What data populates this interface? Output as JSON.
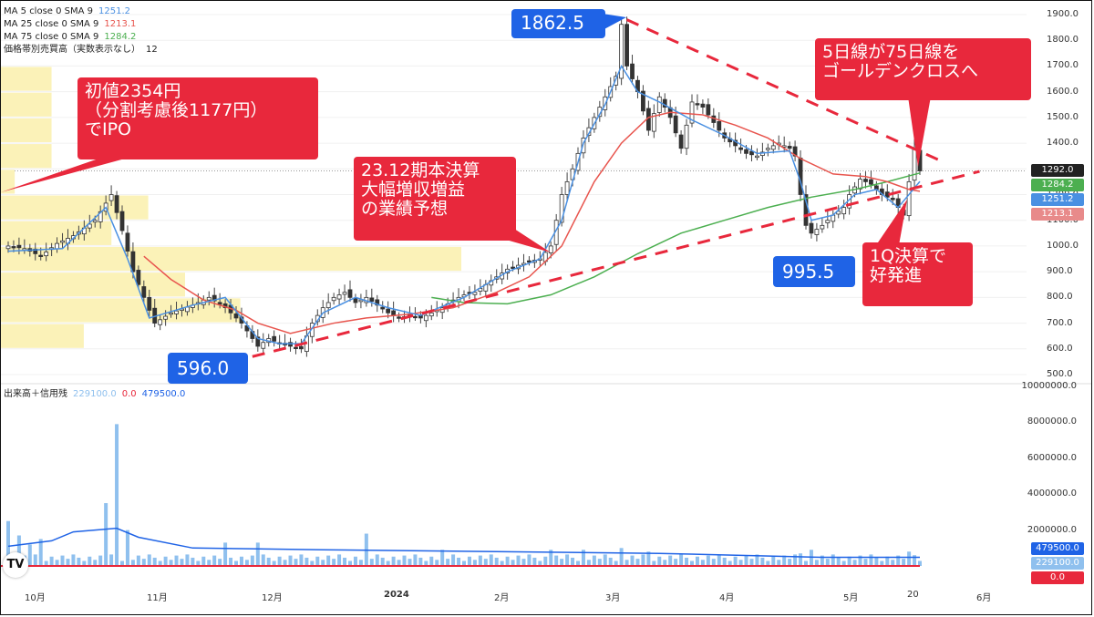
{
  "legends": {
    "ma5": {
      "label": "MA 5 close 0 SMA 9",
      "value": "1251.2",
      "color": "#4a90e2"
    },
    "ma25": {
      "label": "MA 25 close 0 SMA 9",
      "value": "1213.1",
      "color": "#e8554e"
    },
    "ma75": {
      "label": "MA 75 close 0 SMA 9",
      "value": "1284.2",
      "color": "#4caf50"
    },
    "vp": {
      "label": "価格帯別売買高（実数表示なし）",
      "value": "12"
    },
    "vol": {
      "label": "出来高＋信用残",
      "v1": "229100.0",
      "v2": "0.0",
      "v3": "479500.0"
    }
  },
  "callouts": {
    "ipo": "初値2354円\n（分割考慮後1177円）\nでIPO",
    "results": "23.12期本決算\n大幅増収増益\nの業績予想",
    "golden": "5日線が75日線を\nゴールデンクロスへ",
    "q1": "1Q決算で\n好発進",
    "high": "1862.5",
    "low1": "596.0",
    "low2": "995.5"
  },
  "price_tags": [
    {
      "text": "1292.0",
      "color": "#222222"
    },
    {
      "text": "1284.2",
      "color": "#4caf50"
    },
    {
      "text": "1251.2",
      "color": "#4a90e2"
    },
    {
      "text": "1213.1",
      "color": "#e88a8a"
    }
  ],
  "volume_tags": [
    {
      "text": "479500.0",
      "color": "#1f63e6"
    },
    {
      "text": "229100.0",
      "color": "#8fc0ee"
    },
    {
      "text": "0.0",
      "color": "#e8283c"
    }
  ],
  "logo": "TV",
  "chart_data": {
    "type": "candlestick",
    "price_axis": {
      "ticks": [
        500,
        600,
        700,
        800,
        900,
        1000,
        1100,
        1200,
        1300,
        1400,
        1500,
        1600,
        1700,
        1800,
        1900
      ],
      "range": [
        460,
        1940
      ]
    },
    "volume_axis": {
      "ticks": [
        2000000,
        4000000,
        6000000,
        8000000,
        10000000
      ],
      "tick_labels": [
        "2000000.0",
        "4000000.0",
        "6000000.0",
        "8000000.0",
        "10000000.0"
      ],
      "range": [
        0,
        10000000
      ]
    },
    "x_axis_labels": [
      "10月",
      "11月",
      "12月",
      "2024",
      "2月",
      "3月",
      "4月",
      "5月",
      "20",
      "6月"
    ],
    "last_price": 1292.0,
    "annotations": {
      "high": 1862.5,
      "low1": 596.0,
      "low2": 995.5
    },
    "price_path": [
      [
        0,
        1000
      ],
      [
        3,
        990
      ],
      [
        6,
        960
      ],
      [
        9,
        1010
      ],
      [
        12,
        1040
      ],
      [
        16,
        1100
      ],
      [
        19,
        1200
      ],
      [
        21,
        1060
      ],
      [
        23,
        900
      ],
      [
        25,
        800
      ],
      [
        27,
        700
      ],
      [
        30,
        740
      ],
      [
        34,
        770
      ],
      [
        37,
        800
      ],
      [
        40,
        760
      ],
      [
        43,
        700
      ],
      [
        46,
        610
      ],
      [
        48,
        640
      ],
      [
        50,
        620
      ],
      [
        52,
        610
      ],
      [
        54,
        600
      ],
      [
        56,
        700
      ],
      [
        58,
        760
      ],
      [
        60,
        800
      ],
      [
        62,
        820
      ],
      [
        64,
        780
      ],
      [
        66,
        800
      ],
      [
        68,
        770
      ],
      [
        70,
        740
      ],
      [
        72,
        720
      ],
      [
        74,
        730
      ],
      [
        76,
        720
      ],
      [
        78,
        740
      ],
      [
        80,
        760
      ],
      [
        82,
        790
      ],
      [
        84,
        810
      ],
      [
        86,
        820
      ],
      [
        88,
        850
      ],
      [
        90,
        880
      ],
      [
        92,
        910
      ],
      [
        94,
        925
      ],
      [
        96,
        940
      ],
      [
        98,
        950
      ],
      [
        100,
        1000
      ],
      [
        101,
        1100
      ],
      [
        102,
        1200
      ],
      [
        104,
        1300
      ],
      [
        106,
        1420
      ],
      [
        108,
        1500
      ],
      [
        110,
        1580
      ],
      [
        112,
        1660
      ],
      [
        113,
        1862
      ],
      [
        114,
        1700
      ],
      [
        116,
        1600
      ],
      [
        118,
        1450
      ],
      [
        120,
        1580
      ],
      [
        122,
        1500
      ],
      [
        124,
        1380
      ],
      [
        126,
        1560
      ],
      [
        128,
        1540
      ],
      [
        130,
        1480
      ],
      [
        132,
        1420
      ],
      [
        134,
        1390
      ],
      [
        136,
        1360
      ],
      [
        138,
        1350
      ],
      [
        140,
        1380
      ],
      [
        142,
        1400
      ],
      [
        144,
        1380
      ],
      [
        145,
        1350
      ],
      [
        146,
        1200
      ],
      [
        147,
        1080
      ],
      [
        148,
        1050
      ],
      [
        150,
        1080
      ],
      [
        152,
        1120
      ],
      [
        154,
        1150
      ],
      [
        155,
        1200
      ],
      [
        157,
        1260
      ],
      [
        159,
        1240
      ],
      [
        161,
        1200
      ],
      [
        163,
        1180
      ],
      [
        165,
        1120
      ],
      [
        166,
        1250
      ],
      [
        167,
        1380
      ],
      [
        168,
        1292
      ]
    ],
    "ma5": [
      [
        0,
        980
      ],
      [
        10,
        990
      ],
      [
        18,
        1150
      ],
      [
        22,
        950
      ],
      [
        26,
        720
      ],
      [
        34,
        770
      ],
      [
        40,
        800
      ],
      [
        46,
        640
      ],
      [
        50,
        620
      ],
      [
        54,
        620
      ],
      [
        58,
        740
      ],
      [
        64,
        800
      ],
      [
        70,
        760
      ],
      [
        76,
        730
      ],
      [
        84,
        800
      ],
      [
        92,
        900
      ],
      [
        98,
        950
      ],
      [
        102,
        1100
      ],
      [
        106,
        1400
      ],
      [
        110,
        1550
      ],
      [
        113,
        1700
      ],
      [
        116,
        1600
      ],
      [
        120,
        1560
      ],
      [
        126,
        1490
      ],
      [
        132,
        1430
      ],
      [
        138,
        1360
      ],
      [
        144,
        1370
      ],
      [
        146,
        1250
      ],
      [
        148,
        1100
      ],
      [
        152,
        1120
      ],
      [
        156,
        1200
      ],
      [
        160,
        1220
      ],
      [
        164,
        1150
      ],
      [
        168,
        1251
      ]
    ],
    "ma25": [
      [
        25,
        960
      ],
      [
        30,
        870
      ],
      [
        36,
        790
      ],
      [
        42,
        750
      ],
      [
        46,
        700
      ],
      [
        52,
        660
      ],
      [
        60,
        700
      ],
      [
        66,
        720
      ],
      [
        74,
        735
      ],
      [
        82,
        760
      ],
      [
        90,
        820
      ],
      [
        96,
        880
      ],
      [
        102,
        1000
      ],
      [
        108,
        1250
      ],
      [
        113,
        1400
      ],
      [
        118,
        1500
      ],
      [
        122,
        1520
      ],
      [
        128,
        1510
      ],
      [
        134,
        1470
      ],
      [
        140,
        1420
      ],
      [
        146,
        1340
      ],
      [
        152,
        1280
      ],
      [
        158,
        1270
      ],
      [
        162,
        1250
      ],
      [
        166,
        1220
      ],
      [
        168,
        1213
      ]
    ],
    "ma75": [
      [
        78,
        800
      ],
      [
        84,
        780
      ],
      [
        92,
        775
      ],
      [
        100,
        810
      ],
      [
        108,
        880
      ],
      [
        116,
        970
      ],
      [
        124,
        1050
      ],
      [
        132,
        1100
      ],
      [
        140,
        1150
      ],
      [
        148,
        1190
      ],
      [
        156,
        1220
      ],
      [
        162,
        1250
      ],
      [
        168,
        1284
      ]
    ],
    "trend_upper": [
      [
        114,
        1880
      ],
      [
        172,
        1330
      ]
    ],
    "trend_lower": [
      [
        45,
        570
      ],
      [
        179,
        1290
      ]
    ],
    "volume_profile": [
      {
        "price_low": 600,
        "price_high": 700,
        "size": 0.18
      },
      {
        "price_low": 700,
        "price_high": 800,
        "size": 0.52
      },
      {
        "price_low": 800,
        "price_high": 900,
        "size": 0.4
      },
      {
        "price_low": 900,
        "price_high": 1000,
        "size": 1.0
      },
      {
        "price_low": 1000,
        "price_high": 1100,
        "size": 0.24
      },
      {
        "price_low": 1100,
        "price_high": 1200,
        "size": 0.32
      },
      {
        "price_low": 1200,
        "price_high": 1300,
        "size": 0.03
      },
      {
        "price_low": 1300,
        "price_high": 1400,
        "size": 0.11
      },
      {
        "price_low": 1400,
        "price_high": 1500,
        "size": 0.11
      },
      {
        "price_low": 1500,
        "price_high": 1600,
        "size": 0.11
      },
      {
        "price_low": 1600,
        "price_high": 1700,
        "size": 0.11
      }
    ],
    "volume_spikes": [
      [
        0,
        2500000
      ],
      [
        2,
        1700000
      ],
      [
        4,
        1200000
      ],
      [
        6,
        1500000
      ],
      [
        18,
        3500000
      ],
      [
        20,
        7900000
      ],
      [
        22,
        2000000
      ],
      [
        40,
        1300000
      ],
      [
        46,
        1300000
      ],
      [
        66,
        1800000
      ],
      [
        80,
        900000
      ],
      [
        100,
        900000
      ],
      [
        106,
        900000
      ],
      [
        113,
        1000000
      ],
      [
        118,
        800000
      ],
      [
        146,
        700000
      ],
      [
        148,
        900000
      ],
      [
        166,
        800000
      ],
      [
        167,
        600000
      ]
    ],
    "margin_balance": [
      [
        0,
        1100000
      ],
      [
        8,
        1400000
      ],
      [
        12,
        1900000
      ],
      [
        20,
        2100000
      ],
      [
        24,
        1600000
      ],
      [
        34,
        1000000
      ],
      [
        46,
        950000
      ],
      [
        58,
        900000
      ],
      [
        90,
        800000
      ],
      [
        120,
        700000
      ],
      [
        150,
        480000
      ],
      [
        168,
        479500
      ]
    ]
  }
}
